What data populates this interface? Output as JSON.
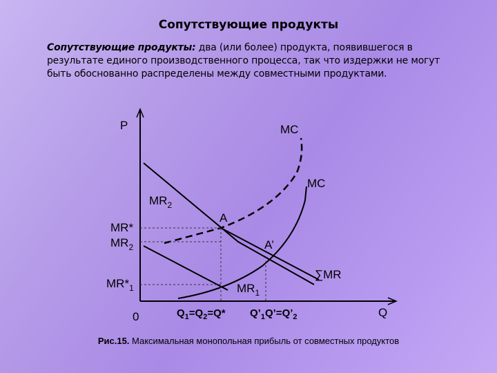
{
  "slide": {
    "title": "Сопутствующие продукты",
    "definition_term": "Сопутствующие продукты:",
    "definition_text": " два (или более) продукта, появившегося в результате единого производственного процесса, так что издержки не могут быть обоснованно распределены между совместными продуктами."
  },
  "diagram": {
    "axis_y_label": "P",
    "axis_x_label": "Q",
    "origin_label": "0",
    "labels": {
      "mc_dashed": "MC",
      "mc_solid": "MC",
      "mr2_upper": "MR",
      "mr2_upper_sub": "2",
      "point_a": "A",
      "point_a_prime": "A’",
      "sum_mr": "∑MR",
      "mr1": "MR",
      "mr1_sub": "1",
      "mr_star_line1": "MR*",
      "mr2_left": "MR",
      "mr2_left_sub": "2",
      "mr_star1": "MR*",
      "mr_star1_sub": "1",
      "q_eq_1": "Q",
      "q_eq_1_sub": "1",
      "q_eq_2": "=Q",
      "q_eq_2_sub": "2",
      "q_eq_3": "=Q*",
      "q_prime_1": "Q’",
      "q_prime_1_sub": "1",
      "q_prime_2": "Q’=Q’",
      "q_prime_2_sub": "2"
    }
  },
  "caption": {
    "figure_number": "Рис.15.",
    "text": " Максимальная монопольная прибыль от совместных продуктов"
  }
}
